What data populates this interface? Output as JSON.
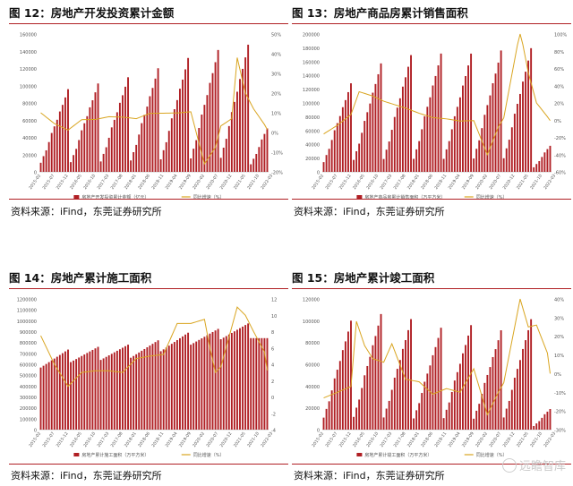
{
  "colors": {
    "bar": "#b01f24",
    "line": "#d9a520",
    "accent": "#b01f24",
    "axis": "#999999",
    "text": "#555555"
  },
  "source_text": "资料来源：iFind，东莞证券研究所",
  "watermark": "远瞻智库",
  "chart_data": [
    {
      "type": "bar+line",
      "title": "图 12：房地产开发投资累计金额",
      "legend": [
        "房地产开发投资累计金额（亿元）",
        "同比增速（%）"
      ],
      "ylim_left": [
        0,
        160000
      ],
      "yticks_left": [
        0,
        20000,
        40000,
        60000,
        80000,
        100000,
        120000,
        140000,
        160000
      ],
      "ylim_right": [
        -20,
        50
      ],
      "yticks_right": [
        "-20%",
        "-10%",
        "0%",
        "10%",
        "20%",
        "30%",
        "40%",
        "50%"
      ],
      "xticks": [
        "2015-02",
        "2015-07",
        "2015-12",
        "2016-05",
        "2016-10",
        "2017-03",
        "2017-08",
        "2018-01",
        "2018-06",
        "2018-11",
        "2019-04",
        "2019-09",
        "2020-02",
        "2020-07",
        "2020-12",
        "2021-05",
        "2021-10",
        "2022-03"
      ],
      "start_year": 2015,
      "start_month": 2,
      "count": 84,
      "annual_totals": [
        95979,
        102581,
        109799,
        120264,
        132194,
        141443,
        147602,
        80000
      ],
      "growth_points": [
        [
          0,
          10
        ],
        [
          5,
          4.5
        ],
        [
          10,
          1.2
        ],
        [
          15,
          6.5
        ],
        [
          20,
          6.6
        ],
        [
          25,
          8
        ],
        [
          30,
          7.8
        ],
        [
          35,
          7
        ],
        [
          40,
          9.7
        ],
        [
          45,
          9.8
        ],
        [
          50,
          9.9
        ],
        [
          55,
          10.5
        ],
        [
          60,
          -16
        ],
        [
          64,
          -7.5
        ],
        [
          66,
          3.3
        ],
        [
          70,
          7
        ],
        [
          72,
          38
        ],
        [
          75,
          20
        ],
        [
          78,
          12
        ],
        [
          82,
          4
        ],
        [
          84,
          -1
        ],
        [
          86,
          -4.5
        ]
      ],
      "bar_series_name": "房地产开发投资累计金额（亿元）",
      "line_series_name": "同比增速（%）"
    },
    {
      "type": "bar+line",
      "title": "图 13：房地产商品房累计销售面积",
      "legend": [
        "房地产商品房累计销售面积（万平方米）",
        "同比增速（%）"
      ],
      "ylim_left": [
        0,
        200000
      ],
      "yticks_left": [
        0,
        20000,
        40000,
        60000,
        80000,
        100000,
        120000,
        140000,
        160000,
        180000,
        200000
      ],
      "ylim_right": [
        -60,
        100
      ],
      "yticks_right": [
        "-60%",
        "-40%",
        "-20%",
        "0%",
        "20%",
        "40%",
        "60%",
        "80%",
        "100%"
      ],
      "xticks": [
        "2015-02",
        "2015-07",
        "2015-12",
        "2016-05",
        "2016-10",
        "2017-03",
        "2017-08",
        "2018-01",
        "2018-06",
        "2018-11",
        "2019-04",
        "2019-09",
        "2020-02",
        "2020-07",
        "2020-12",
        "2021-05",
        "2021-10",
        "2022-03"
      ],
      "start_year": 2015,
      "start_month": 2,
      "count": 84,
      "annual_totals": [
        128495,
        157349,
        169408,
        171654,
        171558,
        176086,
        179433,
        60000
      ],
      "growth_points": [
        [
          0,
          -16
        ],
        [
          5,
          -6
        ],
        [
          10,
          6.5
        ],
        [
          13,
          33
        ],
        [
          18,
          28
        ],
        [
          22,
          22
        ],
        [
          25,
          19
        ],
        [
          30,
          14
        ],
        [
          35,
          8
        ],
        [
          40,
          3
        ],
        [
          45,
          1.5
        ],
        [
          50,
          -1
        ],
        [
          55,
          -0.5
        ],
        [
          60,
          -40
        ],
        [
          64,
          -8
        ],
        [
          66,
          2.6
        ],
        [
          72,
          104
        ],
        [
          75,
          55
        ],
        [
          78,
          20
        ],
        [
          82,
          4
        ],
        [
          84,
          -5
        ],
        [
          86,
          -13
        ]
      ],
      "bar_series_name": "房地产商品房累计销售面积（万平方米）",
      "line_series_name": "同比增速（%）"
    },
    {
      "type": "bar+line",
      "title": "图 14：房地产累计施工面积",
      "legend": [
        "房地产累计施工面积（万平方米）",
        "同比增速（%）"
      ],
      "ylim_left": [
        0,
        1200000
      ],
      "yticks_left": [
        0,
        100000,
        200000,
        300000,
        400000,
        500000,
        600000,
        700000,
        800000,
        900000,
        1000000,
        1100000,
        1200000
      ],
      "ylim_right": [
        -4,
        12
      ],
      "yticks_right": [
        "-4",
        "-2",
        "0",
        "2",
        "4",
        "6",
        "8",
        "10",
        "12"
      ],
      "xticks": [
        "2015-02",
        "2015-07",
        "2015-12",
        "2016-05",
        "2016-10",
        "2017-03",
        "2017-08",
        "2018-01",
        "2018-06",
        "2018-11",
        "2019-04",
        "2019-09",
        "2020-02",
        "2020-07",
        "2020-12",
        "2021-05",
        "2021-10",
        "2022-03"
      ],
      "start_year": 2015,
      "start_month": 2,
      "count": 84,
      "stock_start": [
        570000,
        620000,
        640000,
        660000,
        720000,
        780000,
        830000,
        840000
      ],
      "stock_end": [
        735000,
        760000,
        780000,
        820000,
        890000,
        925000,
        975000,
        840000
      ],
      "growth_points": [
        [
          0,
          7.5
        ],
        [
          5,
          4
        ],
        [
          10,
          1.3
        ],
        [
          15,
          3
        ],
        [
          20,
          3.2
        ],
        [
          25,
          3.2
        ],
        [
          30,
          3
        ],
        [
          35,
          4.7
        ],
        [
          40,
          5
        ],
        [
          45,
          5.2
        ],
        [
          50,
          9
        ],
        [
          55,
          9
        ],
        [
          60,
          9.5
        ],
        [
          62,
          6
        ],
        [
          64,
          3
        ],
        [
          66,
          3.7
        ],
        [
          72,
          11
        ],
        [
          75,
          10
        ],
        [
          78,
          8
        ],
        [
          82,
          5.5
        ],
        [
          84,
          1
        ],
        [
          86,
          -1
        ]
      ],
      "bar_series_name": "房地产累计施工面积（万平方米）",
      "line_series_name": "同比增速（%）"
    },
    {
      "type": "bar+line",
      "title": "图 15：房地产累计竣工面积",
      "legend": [
        "房地产累计竣工面积（万平方米）",
        "同比增速（%）"
      ],
      "ylim_left": [
        0,
        120000
      ],
      "yticks_left": [
        0,
        20000,
        40000,
        60000,
        80000,
        100000,
        120000
      ],
      "ylim_right": [
        -30,
        40
      ],
      "yticks_right": [
        "-30%",
        "-20%",
        "-10%",
        "0%",
        "10%",
        "20%",
        "30%",
        "40%"
      ],
      "xticks": [
        "2015-02",
        "2015-07",
        "2015-12",
        "2016-05",
        "2016-10",
        "2017-03",
        "2017-08",
        "2018-01",
        "2018-06",
        "2018-11",
        "2019-04",
        "2019-09",
        "2020-02",
        "2020-07",
        "2020-12",
        "2021-05",
        "2021-10",
        "2022-03"
      ],
      "start_year": 2015,
      "start_month": 2,
      "count": 84,
      "annual_totals": [
        100039,
        106128,
        101486,
        93550,
        95942,
        91218,
        101412,
        30000
      ],
      "growth_points": [
        [
          0,
          -13
        ],
        [
          5,
          -10
        ],
        [
          10,
          -6.9
        ],
        [
          12,
          28
        ],
        [
          15,
          15
        ],
        [
          18,
          8
        ],
        [
          22,
          6.1
        ],
        [
          25,
          16
        ],
        [
          30,
          -3
        ],
        [
          35,
          -4.4
        ],
        [
          40,
          -11
        ],
        [
          45,
          -8
        ],
        [
          50,
          -10
        ],
        [
          55,
          2.6
        ],
        [
          60,
          -22
        ],
        [
          64,
          -10
        ],
        [
          66,
          -4.9
        ],
        [
          72,
          40
        ],
        [
          75,
          25
        ],
        [
          78,
          26
        ],
        [
          82,
          11
        ],
        [
          84,
          -11
        ],
        [
          86,
          -12
        ]
      ],
      "bar_series_name": "房地产累计竣工面积（万平方米）",
      "line_series_name": "同比增速（%）"
    }
  ]
}
